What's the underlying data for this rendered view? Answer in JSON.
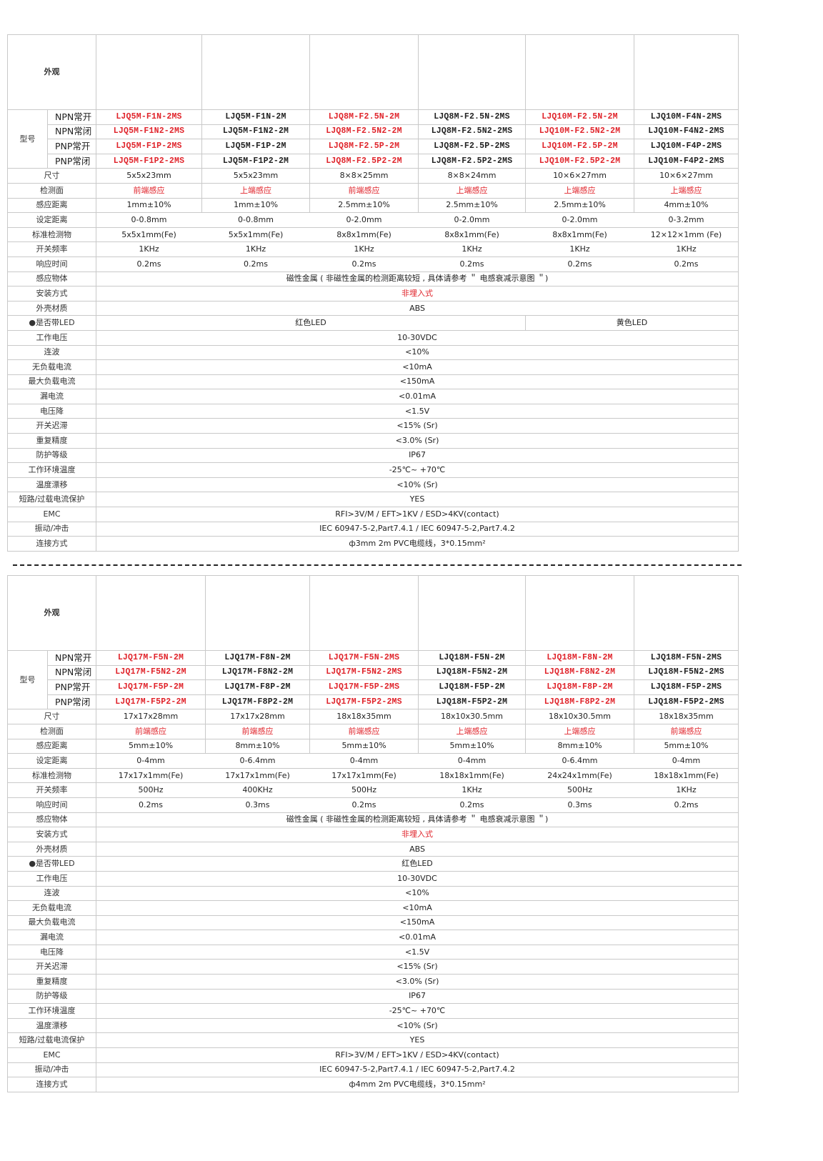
{
  "tables": [
    {
      "appearance_label": "外观",
      "model_label": "型号",
      "model_types": [
        "NPN常开",
        "NPN常闭",
        "PNP常开",
        "PNP常闭"
      ],
      "products": [
        {
          "image": {
            "body": "#3b1c24",
            "cable": "#bdbdbd"
          },
          "red": true,
          "models": [
            "LJQ5M-F1N-2MS",
            "LJQ5M-F1N2-2MS",
            "LJQ5M-F1P-2MS",
            "LJQ5M-F1P2-2MS"
          ]
        },
        {
          "image": {
            "body": "#3b1c24",
            "cable": "#bdbdbd"
          },
          "red": false,
          "models": [
            "LJQ5M-F1N-2M",
            "LJQ5M-F1N2-2M",
            "LJQ5M-F1P-2M",
            "LJQ5M-F1P2-2M"
          ]
        },
        {
          "image": {
            "body": "#2c2c2c",
            "cable": "#bdbdbd"
          },
          "red": true,
          "models": [
            "LJQ8M-F2.5N-2M",
            "LJQ8M-F2.5N2-2M",
            "LJQ8M-F2.5P-2M",
            "LJQ8M-F2.5P2-2M"
          ]
        },
        {
          "image": {
            "body": "#2c2c2c",
            "cable": "#bdbdbd"
          },
          "red": false,
          "models": [
            "LJQ8M-F2.5N-2MS",
            "LJQ8M-F2.5N2-2MS",
            "LJQ8M-F2.5P-2MS",
            "LJQ8M-F2.5P2-2MS"
          ]
        },
        {
          "image": {
            "body": "#2c2c2c",
            "cable": "#bdbdbd"
          },
          "red": true,
          "models": [
            "LJQ10M-F2.5N-2M",
            "LJQ10M-F2.5N2-2M",
            "LJQ10M-F2.5P-2M",
            "LJQ10M-F2.5P2-2M"
          ]
        },
        {
          "image": {
            "body": "#2c2c2c",
            "cable": "#bdbdbd"
          },
          "red": false,
          "models": [
            "LJQ10M-F4N-2MS",
            "LJQ10M-F4N2-2MS",
            "LJQ10M-F4P-2MS",
            "LJQ10M-F4P2-2MS"
          ]
        }
      ],
      "per_rows": [
        {
          "label": "尺寸",
          "dividers": true,
          "red": false,
          "values": [
            "5x5x23mm",
            "5x5x23mm",
            "8×8×25mm",
            "8×8×24mm",
            "10×6×27mm",
            "10×6×27mm"
          ]
        },
        {
          "label": "检测面",
          "dividers": true,
          "red": true,
          "values": [
            "前端感应",
            "上端感应",
            "前端感应",
            "上端感应",
            "上端感应",
            "上端感应"
          ]
        },
        {
          "label": "感应距离",
          "dividers": true,
          "red": false,
          "values": [
            "1mm±10%",
            "1mm±10%",
            "2.5mm±10%",
            "2.5mm±10%",
            "2.5mm±10%",
            "4mm±10%"
          ]
        },
        {
          "label": "设定距离",
          "dividers": false,
          "red": false,
          "values": [
            "0-0.8mm",
            "0-0.8mm",
            "0-2.0mm",
            "0-2.0mm",
            "0-2.0mm",
            "0-3.2mm"
          ]
        },
        {
          "label": "标准检测物",
          "dividers": false,
          "red": false,
          "values": [
            "5x5x1mm(Fe)",
            "5x5x1mm(Fe)",
            "8x8x1mm(Fe)",
            "8x8x1mm(Fe)",
            "8x8x1mm(Fe)",
            "12×12×1mm (Fe)"
          ]
        },
        {
          "label": "开关频率",
          "dividers": false,
          "red": false,
          "values": [
            "1KHz",
            "1KHz",
            "1KHz",
            "1KHz",
            "1KHz",
            "1KHz"
          ]
        },
        {
          "label": "响应时间",
          "dividers": false,
          "red": false,
          "values": [
            "0.2ms",
            "0.2ms",
            "0.2ms",
            "0.2ms",
            "0.2ms",
            "0.2ms"
          ]
        }
      ],
      "shared_rows": [
        {
          "label": "感应物体",
          "cells": [
            {
              "text": "磁性金属 ( 非磁性金属的检测距离较短 , 具体请参考 ＂ 电感衰减示意图 ＂)",
              "span": 6
            }
          ]
        },
        {
          "label": "安装方式",
          "cells": [
            {
              "text": "非埋入式",
              "span": 6,
              "red": true
            }
          ]
        },
        {
          "label": "外壳材质",
          "cells": [
            {
              "text": "ABS",
              "span": 6
            }
          ]
        },
        {
          "label": "●是否带LED",
          "cells": [
            {
              "text": "红色LED",
              "span": 4
            },
            {
              "text": "黄色LED",
              "span": 2
            }
          ]
        },
        {
          "label": "工作电压",
          "cells": [
            {
              "text": "10-30VDC",
              "span": 6
            }
          ]
        },
        {
          "label": "连波",
          "cells": [
            {
              "text": "<10%",
              "span": 6
            }
          ]
        },
        {
          "label": "无负载电流",
          "cells": [
            {
              "text": "<10mA",
              "span": 6
            }
          ]
        },
        {
          "label": "最大负载电流",
          "cells": [
            {
              "text": "<150mA",
              "span": 6
            }
          ]
        },
        {
          "label": "漏电流",
          "cells": [
            {
              "text": "<0.01mA",
              "span": 6
            }
          ]
        },
        {
          "label": "电压降",
          "cells": [
            {
              "text": "<1.5V",
              "span": 6
            }
          ]
        },
        {
          "label": "开关迟滞",
          "cells": [
            {
              "text": "<15% (Sr)",
              "span": 6
            }
          ]
        },
        {
          "label": "重复精度",
          "cells": [
            {
              "text": "<3.0% (Sr)",
              "span": 6
            }
          ]
        },
        {
          "label": "防护等级",
          "cells": [
            {
              "text": "IP67",
              "span": 6
            }
          ]
        },
        {
          "label": "工作环境温度",
          "cells": [
            {
              "text": "-25℃~ +70℃",
              "span": 6
            }
          ]
        },
        {
          "label": "温度漂移",
          "cells": [
            {
              "text": "<10% (Sr)",
              "span": 6
            }
          ]
        },
        {
          "label": "短路/过载电流保护",
          "cells": [
            {
              "text": "YES",
              "span": 6
            }
          ]
        },
        {
          "label": "EMC",
          "cells": [
            {
              "text": "RFI>3V/M  /  EFT>1KV  /  ESD>4KV(contact)",
              "span": 6
            }
          ]
        },
        {
          "label": "振动/冲击",
          "cells": [
            {
              "text": "IEC 60947-5-2,Part7.4.1 /  IEC 60947-5-2,Part7.4.2",
              "span": 6
            }
          ]
        },
        {
          "label": "连接方式",
          "cells": [
            {
              "text": "ф3mm   2m   PVC电缆线，3*0.15mm²",
              "span": 6
            }
          ]
        }
      ]
    },
    {
      "appearance_label": "外观",
      "model_label": "型号",
      "model_types": [
        "NPN常开",
        "NPN常闭",
        "PNP常开",
        "PNP常闭"
      ],
      "products": [
        {
          "image": {
            "body": "#f2a33a",
            "cable": "#c8c8c8"
          },
          "red": true,
          "models": [
            "LJQ17M-F5N-2M",
            "LJQ17M-F5N2-2M",
            "LJQ17M-F5P-2M",
            "LJQ17M-F5P2-2M"
          ]
        },
        {
          "image": {
            "body": "#f2a33a",
            "cable": "#c8c8c8"
          },
          "red": false,
          "models": [
            "LJQ17M-F8N-2M",
            "LJQ17M-F8N2-2M",
            "LJQ17M-F8P-2M",
            "LJQ17M-F8P2-2M"
          ]
        },
        {
          "image": {
            "body": "#d52323",
            "cable": "#555555"
          },
          "red": true,
          "models": [
            "LJQ17M-F5N-2MS",
            "LJQ17M-F5N2-2MS",
            "LJQ17M-F5P-2MS",
            "LJQ17M-F5P2-2MS"
          ]
        },
        {
          "image": {
            "body": "#f4d20a",
            "cable": "#444444"
          },
          "red": false,
          "models": [
            "LJQ18M-F5N-2M",
            "LJQ18M-F5N2-2M",
            "LJQ18M-F5P-2M",
            "LJQ18M-F5P2-2M"
          ]
        },
        {
          "image": {
            "body": "#f4d20a",
            "cable": "#444444"
          },
          "red": true,
          "models": [
            "LJQ18M-F8N-2M",
            "LJQ18M-F8N2-2M",
            "LJQ18M-F8P-2M",
            "LJQ18M-F8P2-2M"
          ]
        },
        {
          "image": {
            "body": "#3d9ee0",
            "cable": "#333333"
          },
          "red": false,
          "models": [
            "LJQ18M-F5N-2MS",
            "LJQ18M-F5N2-2MS",
            "LJQ18M-F5P-2MS",
            "LJQ18M-F5P2-2MS"
          ]
        }
      ],
      "per_rows": [
        {
          "label": "尺寸",
          "dividers": true,
          "red": false,
          "values": [
            "17x17x28mm",
            "17x17x28mm",
            "18x18x35mm",
            "18x10x30.5mm",
            "18x10x30.5mm",
            "18x18x35mm"
          ]
        },
        {
          "label": "检测面",
          "dividers": true,
          "red": true,
          "values": [
            "前端感应",
            "前端感应",
            "前端感应",
            "上端感应",
            "上端感应",
            "前端感应"
          ]
        },
        {
          "label": "感应距离",
          "dividers": true,
          "red": false,
          "values": [
            "5mm±10%",
            "8mm±10%",
            "5mm±10%",
            "5mm±10%",
            "8mm±10%",
            "5mm±10%"
          ]
        },
        {
          "label": "设定距离",
          "dividers": false,
          "red": false,
          "values": [
            "0-4mm",
            "0-6.4mm",
            "0-4mm",
            "0-4mm",
            "0-6.4mm",
            "0-4mm"
          ]
        },
        {
          "label": "标准检测物",
          "dividers": false,
          "red": false,
          "values": [
            "17x17x1mm(Fe)",
            "17x17x1mm(Fe)",
            "17x17x1mm(Fe)",
            "18x18x1mm(Fe)",
            "24x24x1mm(Fe)",
            "18x18x1mm(Fe)"
          ]
        },
        {
          "label": "开关频率",
          "dividers": false,
          "red": false,
          "values": [
            "500Hz",
            "400KHz",
            "500Hz",
            "1KHz",
            "500Hz",
            "1KHz"
          ]
        },
        {
          "label": "响应时间",
          "dividers": false,
          "red": false,
          "values": [
            "0.2ms",
            "0.3ms",
            "0.2ms",
            "0.2ms",
            "0.3ms",
            "0.2ms"
          ]
        }
      ],
      "shared_rows": [
        {
          "label": "感应物体",
          "cells": [
            {
              "text": "磁性金属 ( 非磁性金属的检测距离较短 , 具体请参考 ＂ 电感衰减示意图 ＂)",
              "span": 6
            }
          ]
        },
        {
          "label": "安装方式",
          "cells": [
            {
              "text": "非埋入式",
              "span": 6,
              "red": true
            }
          ]
        },
        {
          "label": "外壳材质",
          "cells": [
            {
              "text": "ABS",
              "span": 6
            }
          ]
        },
        {
          "label": "●是否带LED",
          "cells": [
            {
              "text": "红色LED",
              "span": 6
            }
          ]
        },
        {
          "label": "工作电压",
          "cells": [
            {
              "text": "10-30VDC",
              "span": 6
            }
          ]
        },
        {
          "label": "连波",
          "cells": [
            {
              "text": "<10%",
              "span": 6
            }
          ]
        },
        {
          "label": "无负载电流",
          "cells": [
            {
              "text": "<10mA",
              "span": 6
            }
          ]
        },
        {
          "label": "最大负载电流",
          "cells": [
            {
              "text": "<150mA",
              "span": 6
            }
          ]
        },
        {
          "label": "漏电流",
          "cells": [
            {
              "text": "<0.01mA",
              "span": 6
            }
          ]
        },
        {
          "label": "电压降",
          "cells": [
            {
              "text": "<1.5V",
              "span": 6
            }
          ]
        },
        {
          "label": "开关迟滞",
          "cells": [
            {
              "text": "<15% (Sr)",
              "span": 6
            }
          ]
        },
        {
          "label": "重复精度",
          "cells": [
            {
              "text": "<3.0% (Sr)",
              "span": 6
            }
          ]
        },
        {
          "label": "防护等级",
          "cells": [
            {
              "text": "IP67",
              "span": 6
            }
          ]
        },
        {
          "label": "工作环境温度",
          "cells": [
            {
              "text": "-25℃~ +70℃",
              "span": 6
            }
          ]
        },
        {
          "label": "温度漂移",
          "cells": [
            {
              "text": "<10% (Sr)",
              "span": 6
            }
          ]
        },
        {
          "label": "短路/过载电流保护",
          "cells": [
            {
              "text": "YES",
              "span": 6
            }
          ]
        },
        {
          "label": "EMC",
          "cells": [
            {
              "text": "RFI>3V/M  /  EFT>1KV  /  ESD>4KV(contact)",
              "span": 6
            }
          ]
        },
        {
          "label": "振动/冲击",
          "cells": [
            {
              "text": "IEC 60947-5-2,Part7.4.1 /  IEC 60947-5-2,Part7.4.2",
              "span": 6
            }
          ]
        },
        {
          "label": "连接方式",
          "cells": [
            {
              "text": "ф4mm   2m   PVC电缆线，3*0.15mm²",
              "span": 6
            }
          ]
        }
      ]
    }
  ]
}
